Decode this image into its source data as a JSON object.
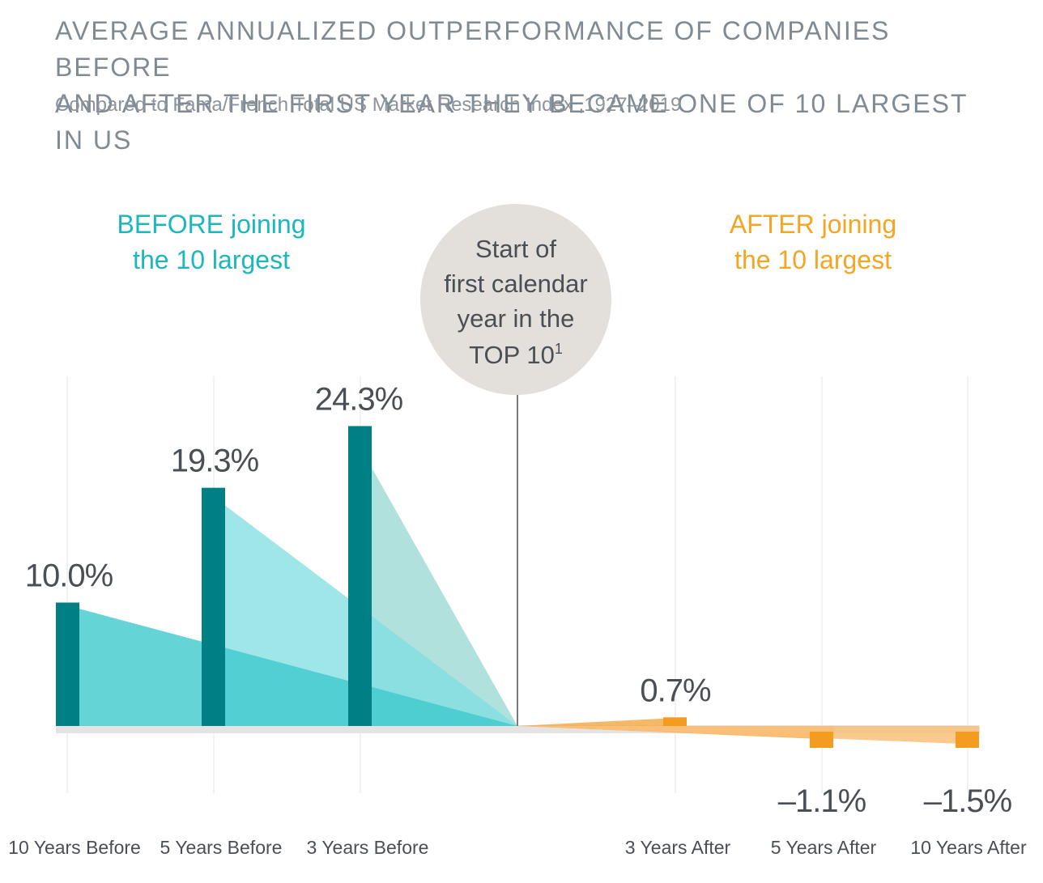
{
  "title_line1": "AVERAGE ANNUALIZED OUTPERFORMANCE OF COMPANIES BEFORE",
  "title_line2": "AND AFTER THE FIRST YEAR THEY BECAME ONE OF 10 LARGEST IN US",
  "subtitle": "Compared to Fama/French Total US Market Research Index ,1927–2019",
  "before_heading": [
    "BEFORE joining",
    "the 10 largest"
  ],
  "after_heading": [
    "AFTER joining",
    "the 10 largest"
  ],
  "center_marker": {
    "lines": [
      "Start of",
      "first calendar",
      "year in the",
      "TOP 10"
    ],
    "superscript": "1"
  },
  "colors": {
    "before_bar": "#007f84",
    "after_bar": "#f39c1f",
    "before_text": "#1bb7bd",
    "after_text": "#f5a524",
    "axis": "#e4e4e4",
    "circle": "#e3e0db",
    "label_text": "#4a4f55"
  },
  "chart_data": {
    "type": "bar",
    "categories": [
      "10 Years Before",
      "5 Years Before",
      "3 Years Before",
      "3 Years After",
      "5 Years After",
      "10 Years After"
    ],
    "values": [
      10.0,
      19.3,
      24.3,
      0.7,
      -1.1,
      -1.5
    ],
    "data_labels": [
      "10.0%",
      "19.3%",
      "24.3%",
      "0.7%",
      "–1.1%",
      "–1.5%"
    ],
    "groups": [
      "before",
      "before",
      "before",
      "after",
      "after",
      "after"
    ],
    "title": "AVERAGE ANNUALIZED OUTPERFORMANCE OF COMPANIES BEFORE AND AFTER THE FIRST YEAR THEY BECAME ONE OF 10 LARGEST IN US",
    "subtitle": "Compared to Fama/French Total US Market Research Index ,1927–2019",
    "xlabel": "",
    "ylabel": "",
    "ylim": [
      -3,
      30
    ],
    "grid": true,
    "legend": "none"
  }
}
